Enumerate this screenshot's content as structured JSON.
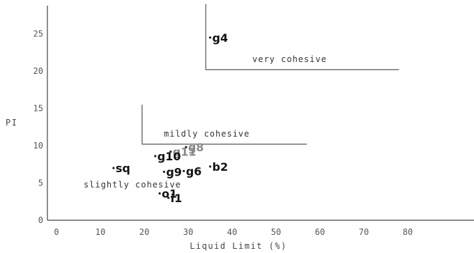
{
  "chart_data": {
    "type": "scatter",
    "title": "",
    "xlabel": "Liquid Limit (%)",
    "ylabel": "PI",
    "xlim": [
      0,
      100
    ],
    "ylim": [
      0,
      29
    ],
    "x_ticks": [
      0,
      10,
      20,
      30,
      40,
      50,
      60,
      70,
      80
    ],
    "y_ticks": [
      0,
      5,
      10,
      15,
      20,
      25
    ],
    "grid": false,
    "regions": [
      {
        "label": "very cohesive",
        "corner": [
          34,
          20.2
        ],
        "x_end": 78,
        "y_top": 29
      },
      {
        "label": "mildly cohesive",
        "corner": [
          19.5,
          10.2
        ],
        "x_end": 57,
        "y_top": 15.5
      }
    ],
    "region_texts": {
      "very": "very cohesive",
      "mildly": "mildly cohesive",
      "slightly": "slightly cohesive"
    },
    "points": [
      {
        "label": "g4",
        "x": 35,
        "y": 24.5
      },
      {
        "label": "g11",
        "x": 26,
        "y": 9.2
      },
      {
        "label": "g8",
        "x": 29.5,
        "y": 9.8
      },
      {
        "label": "g10",
        "x": 22.5,
        "y": 8.6
      },
      {
        "label": "sq",
        "x": 13,
        "y": 7.0
      },
      {
        "label": "g9",
        "x": 24.5,
        "y": 6.5
      },
      {
        "label": "g6",
        "x": 29,
        "y": 6.6
      },
      {
        "label": "b2",
        "x": 35,
        "y": 7.2
      },
      {
        "label": "o1",
        "x": 23.5,
        "y": 3.6
      },
      {
        "label": "i1",
        "x": 25.5,
        "y": 3.0
      }
    ]
  }
}
